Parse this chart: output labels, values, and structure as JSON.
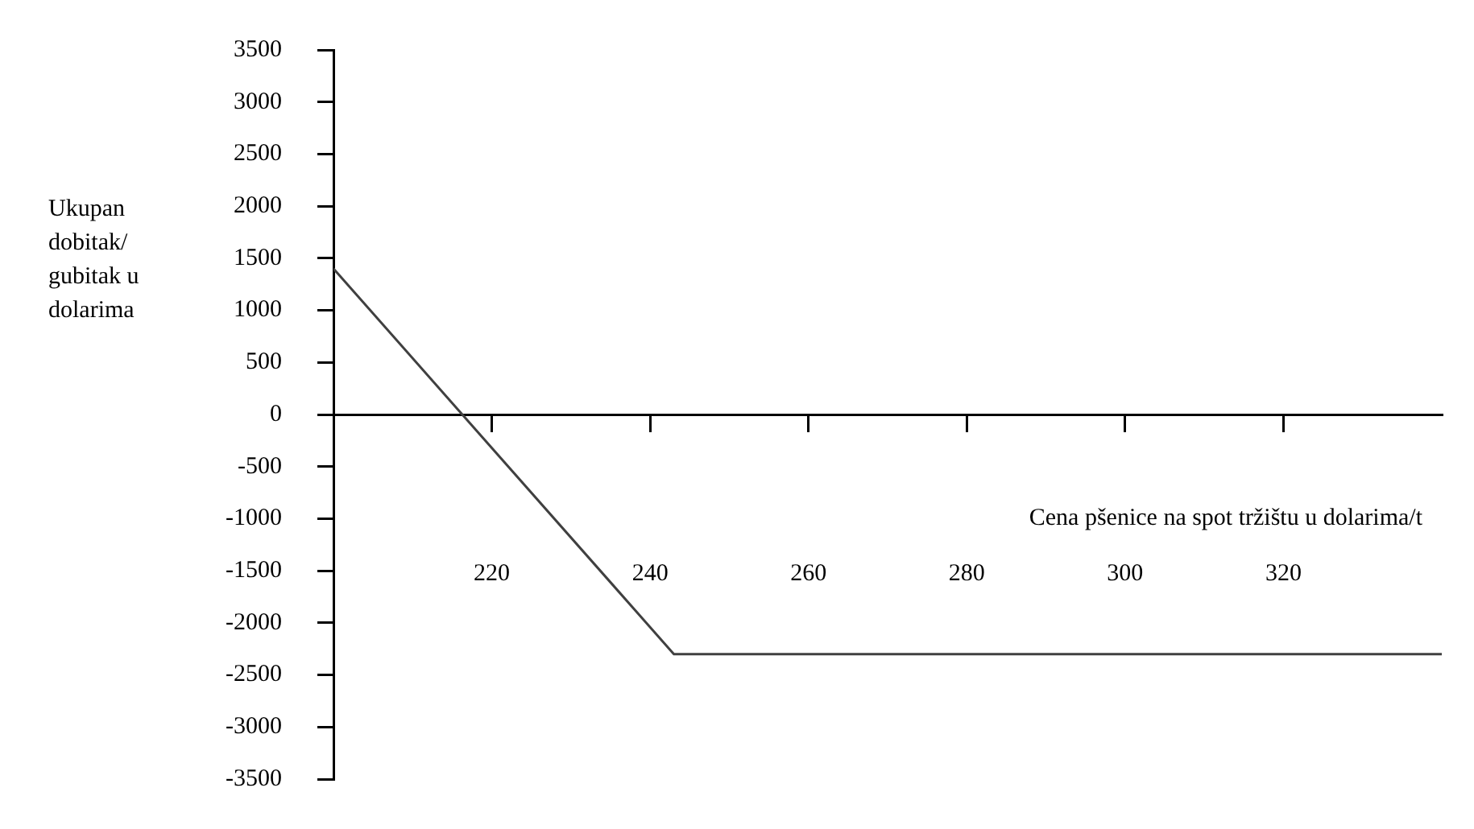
{
  "chart_data": {
    "type": "line",
    "xlabel": "Cena pšenice na spot tržištu u dolarima/t",
    "ylabel": "Ukupan dobitak/ gubitak u dolarima",
    "xlim": [
      200,
      340
    ],
    "xticks": [
      220,
      240,
      260,
      280,
      300,
      320
    ],
    "ylim": [
      -3500,
      3500
    ],
    "yticks": [
      -3500,
      -3000,
      -2500,
      -2000,
      -1500,
      -1000,
      -500,
      0,
      500,
      1000,
      1500,
      2000,
      2500,
      3000,
      3500
    ],
    "series": [
      {
        "color": "#404040",
        "x": [
          200,
          243,
          340
        ],
        "values": [
          1400,
          -2300,
          -2300
        ]
      }
    ],
    "legend": false,
    "marker": "none"
  }
}
